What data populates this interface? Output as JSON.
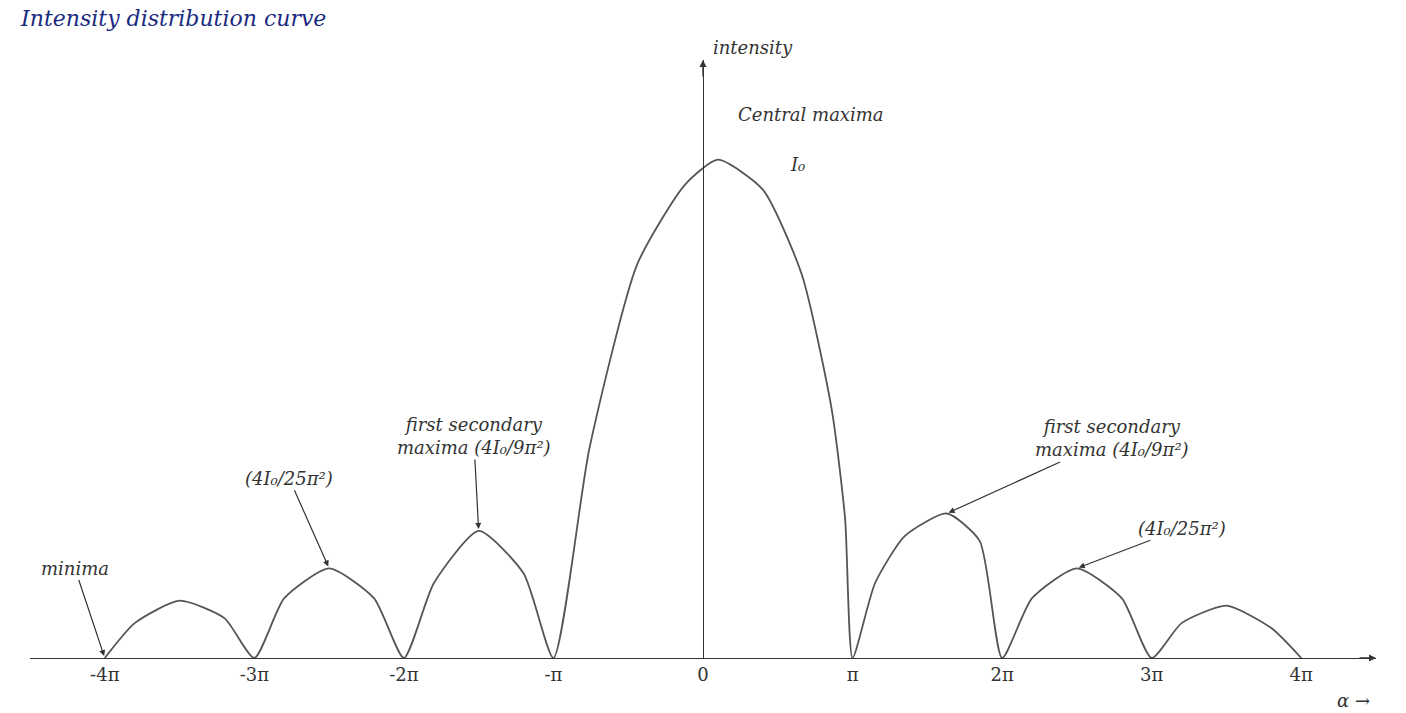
{
  "chart_data": {
    "type": "line",
    "title": "Intensity distribution curve",
    "x_label": "α →",
    "y_label": "intensity",
    "x": [
      -4,
      -3.8,
      -3.5,
      -3.2,
      -3,
      -2.8,
      -2.5,
      -2.2,
      -2,
      -1.8,
      -1.5,
      -1.2,
      -1,
      -0.76,
      -0.44,
      -0.12,
      0.1,
      0.4,
      0.66,
      0.86,
      0.95,
      1,
      1.15,
      1.35,
      1.63,
      1.85,
      2,
      2.2,
      2.5,
      2.8,
      3,
      3.2,
      3.5,
      3.8,
      4
    ],
    "values": [
      0,
      0.07,
      0.115,
      0.08,
      0,
      0.12,
      0.18,
      0.12,
      0,
      0.15,
      0.255,
      0.17,
      0,
      0.42,
      0.79,
      0.95,
      1.0,
      0.94,
      0.77,
      0.5,
      0.28,
      0,
      0.15,
      0.245,
      0.29,
      0.235,
      0,
      0.12,
      0.18,
      0.12,
      0,
      0.07,
      0.105,
      0.06,
      0
    ],
    "color": "#555555",
    "line_style": "solid",
    "xlim": [
      -4.5,
      4.5
    ],
    "xticks": [
      {
        "value": -4,
        "label": "-4π"
      },
      {
        "value": -3,
        "label": "-3π"
      },
      {
        "value": -2,
        "label": "-2π"
      },
      {
        "value": -1,
        "label": "-π"
      },
      0,
      {
        "value": 1,
        "label": "π"
      },
      {
        "value": 2,
        "label": "2π"
      },
      {
        "value": 3,
        "label": "3π"
      },
      {
        "value": 4,
        "label": "4π"
      }
    ],
    "ylim": [
      0,
      1.2
    ],
    "yticks": [],
    "tick_labels": "x",
    "grid": false,
    "annotations": [
      {
        "text": [
          "Central maxima"
        ],
        "x": 0.72,
        "y": 1.09
      },
      {
        "text": [
          "I₀"
        ],
        "x": 0.63,
        "y": 0.99
      },
      {
        "text": [
          "first secondary",
          "maxima (4I₀/9π²)"
        ],
        "x": -1.5,
        "y": 0.255
      },
      {
        "text": [
          "(4I₀/25π²)"
        ],
        "x": -2.5,
        "y": 0.18
      },
      {
        "text": [
          "minima"
        ],
        "x": -4,
        "y": 0
      },
      {
        "text": [
          "first secondary",
          "maxima (4I₀/9π²)"
        ],
        "x": 1.63,
        "y": 0.29
      },
      {
        "text": [
          "(4I₀/25π²)"
        ],
        "x": 2.5,
        "y": 0.18
      }
    ]
  }
}
